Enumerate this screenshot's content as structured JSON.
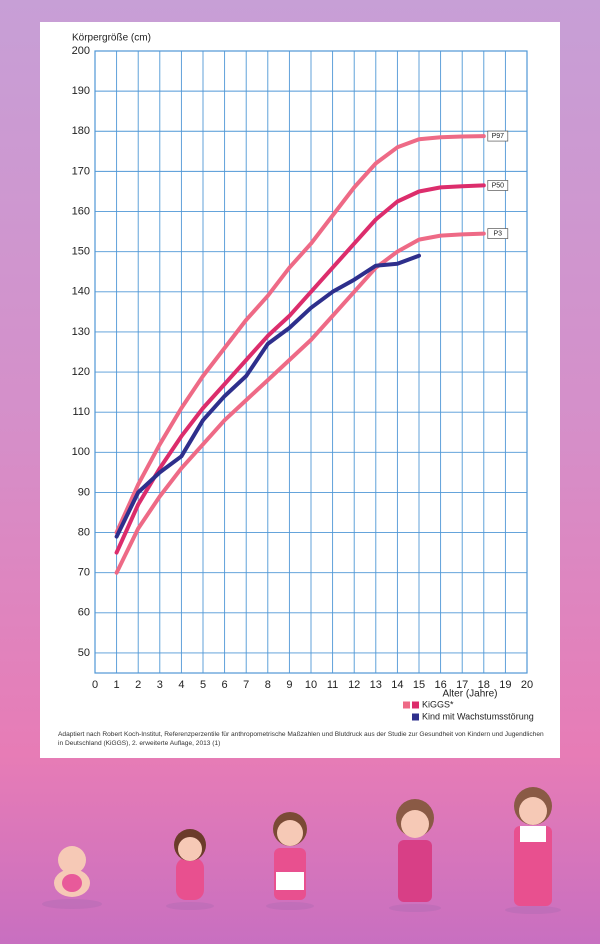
{
  "chart_data": {
    "type": "line",
    "y_label": "Körpergröße (cm)",
    "x_label": "Alter (Jahre)",
    "x": [
      1,
      2,
      3,
      4,
      5,
      6,
      7,
      8,
      9,
      10,
      11,
      12,
      13,
      14,
      15,
      16,
      17,
      18
    ],
    "series": [
      {
        "name": "P97",
        "color": "#ee6a86",
        "values": [
          80,
          92,
          102,
          111,
          119,
          126,
          133,
          139,
          146,
          152,
          159,
          166,
          172,
          176,
          178,
          178.5,
          178.7,
          178.8
        ]
      },
      {
        "name": "P50",
        "color": "#dc2d6c",
        "values": [
          75,
          87,
          96,
          104,
          111,
          117,
          123,
          129,
          134,
          140,
          146,
          152,
          158,
          162.5,
          165,
          166,
          166.3,
          166.5
        ]
      },
      {
        "name": "P3",
        "color": "#ee6a86",
        "values": [
          70,
          81,
          89,
          96,
          102,
          108,
          113,
          118,
          123,
          128,
          134,
          140,
          146,
          150,
          153,
          154,
          154.3,
          154.5
        ]
      },
      {
        "name": "Kind mit Wachstumsstörung",
        "color": "#2e2f8c",
        "values": [
          79,
          90,
          95,
          99,
          108,
          114,
          119,
          127,
          131,
          136,
          140,
          143,
          146.5,
          147,
          149,
          null,
          null,
          null
        ]
      }
    ],
    "legend_group": "KiGGS*",
    "xlim": [
      0,
      20
    ],
    "xticks": [
      0,
      1,
      2,
      3,
      4,
      5,
      6,
      7,
      8,
      9,
      10,
      11,
      12,
      13,
      14,
      15,
      16,
      17,
      18,
      19,
      20
    ],
    "ylim": [
      45,
      200
    ],
    "yticks": [
      50,
      60,
      70,
      80,
      90,
      100,
      110,
      120,
      130,
      140,
      150,
      160,
      170,
      180,
      190,
      200
    ],
    "grid": true,
    "source": "Adaptiert nach Robert Koch-Institut, Referenzperzentile für anthropometrische Maßzahlen und Blutdruck aus der Studie zur Gesundheit von Kindern und Jugendlichen in Deutschland (KiGGS), 2. erweiterte Auflage, 2013 (1)"
  }
}
